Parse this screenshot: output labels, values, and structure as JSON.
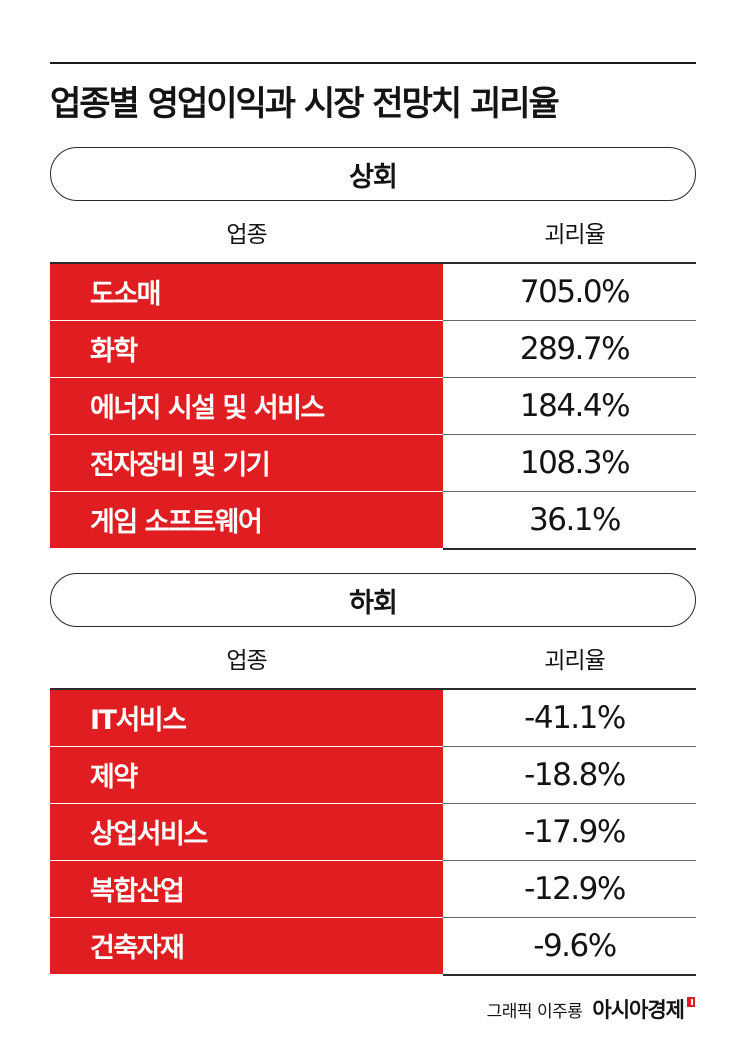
{
  "title": "업종별 영업이익과 시장 전망치 괴리율",
  "colors": {
    "accent": "#e01e22",
    "text": "#141414"
  },
  "chart_data": [
    {
      "type": "table",
      "section_label": "상회",
      "columns": [
        "업종",
        "괴리율"
      ],
      "rows": [
        {
          "category": "도소매",
          "value_text": "705.0%",
          "value": 705.0
        },
        {
          "category": "화학",
          "value_text": "289.7%",
          "value": 289.7
        },
        {
          "category": "에너지 시설 및 서비스",
          "value_text": "184.4%",
          "value": 184.4
        },
        {
          "category": "전자장비 및 기기",
          "value_text": "108.3%",
          "value": 108.3
        },
        {
          "category": "게임 소프트웨어",
          "value_text": "36.1%",
          "value": 36.1
        }
      ]
    },
    {
      "type": "table",
      "section_label": "하회",
      "columns": [
        "업종",
        "괴리율"
      ],
      "rows": [
        {
          "category": "IT서비스",
          "value_text": "-41.1%",
          "value": -41.1
        },
        {
          "category": "제약",
          "value_text": "-18.8%",
          "value": -18.8
        },
        {
          "category": "상업서비스",
          "value_text": "-17.9%",
          "value": -17.9
        },
        {
          "category": "복합산업",
          "value_text": "-12.9%",
          "value": -12.9
        },
        {
          "category": "건축자재",
          "value_text": "-9.6%",
          "value": -9.6
        }
      ]
    }
  ],
  "footer": {
    "credit": "그래픽 이주룡",
    "brand": "아시아경제"
  }
}
